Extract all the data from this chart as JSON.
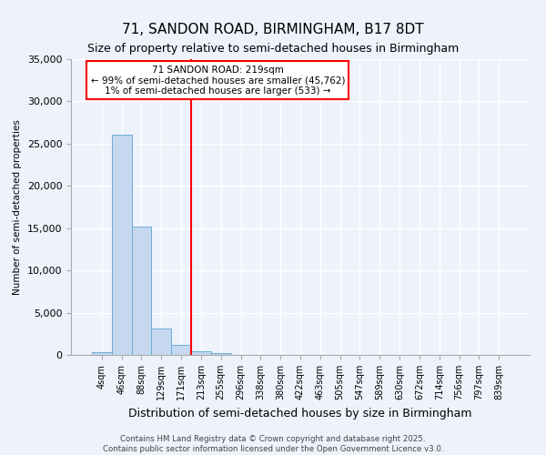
{
  "title": "71, SANDON ROAD, BIRMINGHAM, B17 8DT",
  "subtitle": "Size of property relative to semi-detached houses in Birmingham",
  "xlabel": "Distribution of semi-detached houses by size in Birmingham",
  "ylabel": "Number of semi-detached properties",
  "bin_labels": [
    "4sqm",
    "46sqm",
    "88sqm",
    "129sqm",
    "171sqm",
    "213sqm",
    "255sqm",
    "296sqm",
    "338sqm",
    "380sqm",
    "422sqm",
    "463sqm",
    "505sqm",
    "547sqm",
    "589sqm",
    "630sqm",
    "672sqm",
    "714sqm",
    "756sqm",
    "797sqm",
    "839sqm"
  ],
  "bin_values": [
    300,
    26100,
    15200,
    3100,
    1200,
    400,
    200,
    0,
    0,
    0,
    0,
    0,
    0,
    0,
    0,
    0,
    0,
    0,
    0,
    0,
    0
  ],
  "bar_color": "#c5d8f0",
  "bar_edge_color": "#6aaed6",
  "vline_label_idx": 5,
  "vline_color": "red",
  "ylim": [
    0,
    35000
  ],
  "yticks": [
    0,
    5000,
    10000,
    15000,
    20000,
    25000,
    30000,
    35000
  ],
  "annotation_title": "71 SANDON ROAD: 219sqm",
  "annotation_line1": "← 99% of semi-detached houses are smaller (45,762)",
  "annotation_line2": "1% of semi-detached houses are larger (533) →",
  "annotation_box_color": "#ffffff",
  "annotation_box_edge": "red",
  "footer1": "Contains HM Land Registry data © Crown copyright and database right 2025.",
  "footer2": "Contains public sector information licensed under the Open Government Licence v3.0.",
  "bg_color": "#eef2fb",
  "grid_color": "#ffffff",
  "title_fontsize": 11,
  "subtitle_fontsize": 9
}
